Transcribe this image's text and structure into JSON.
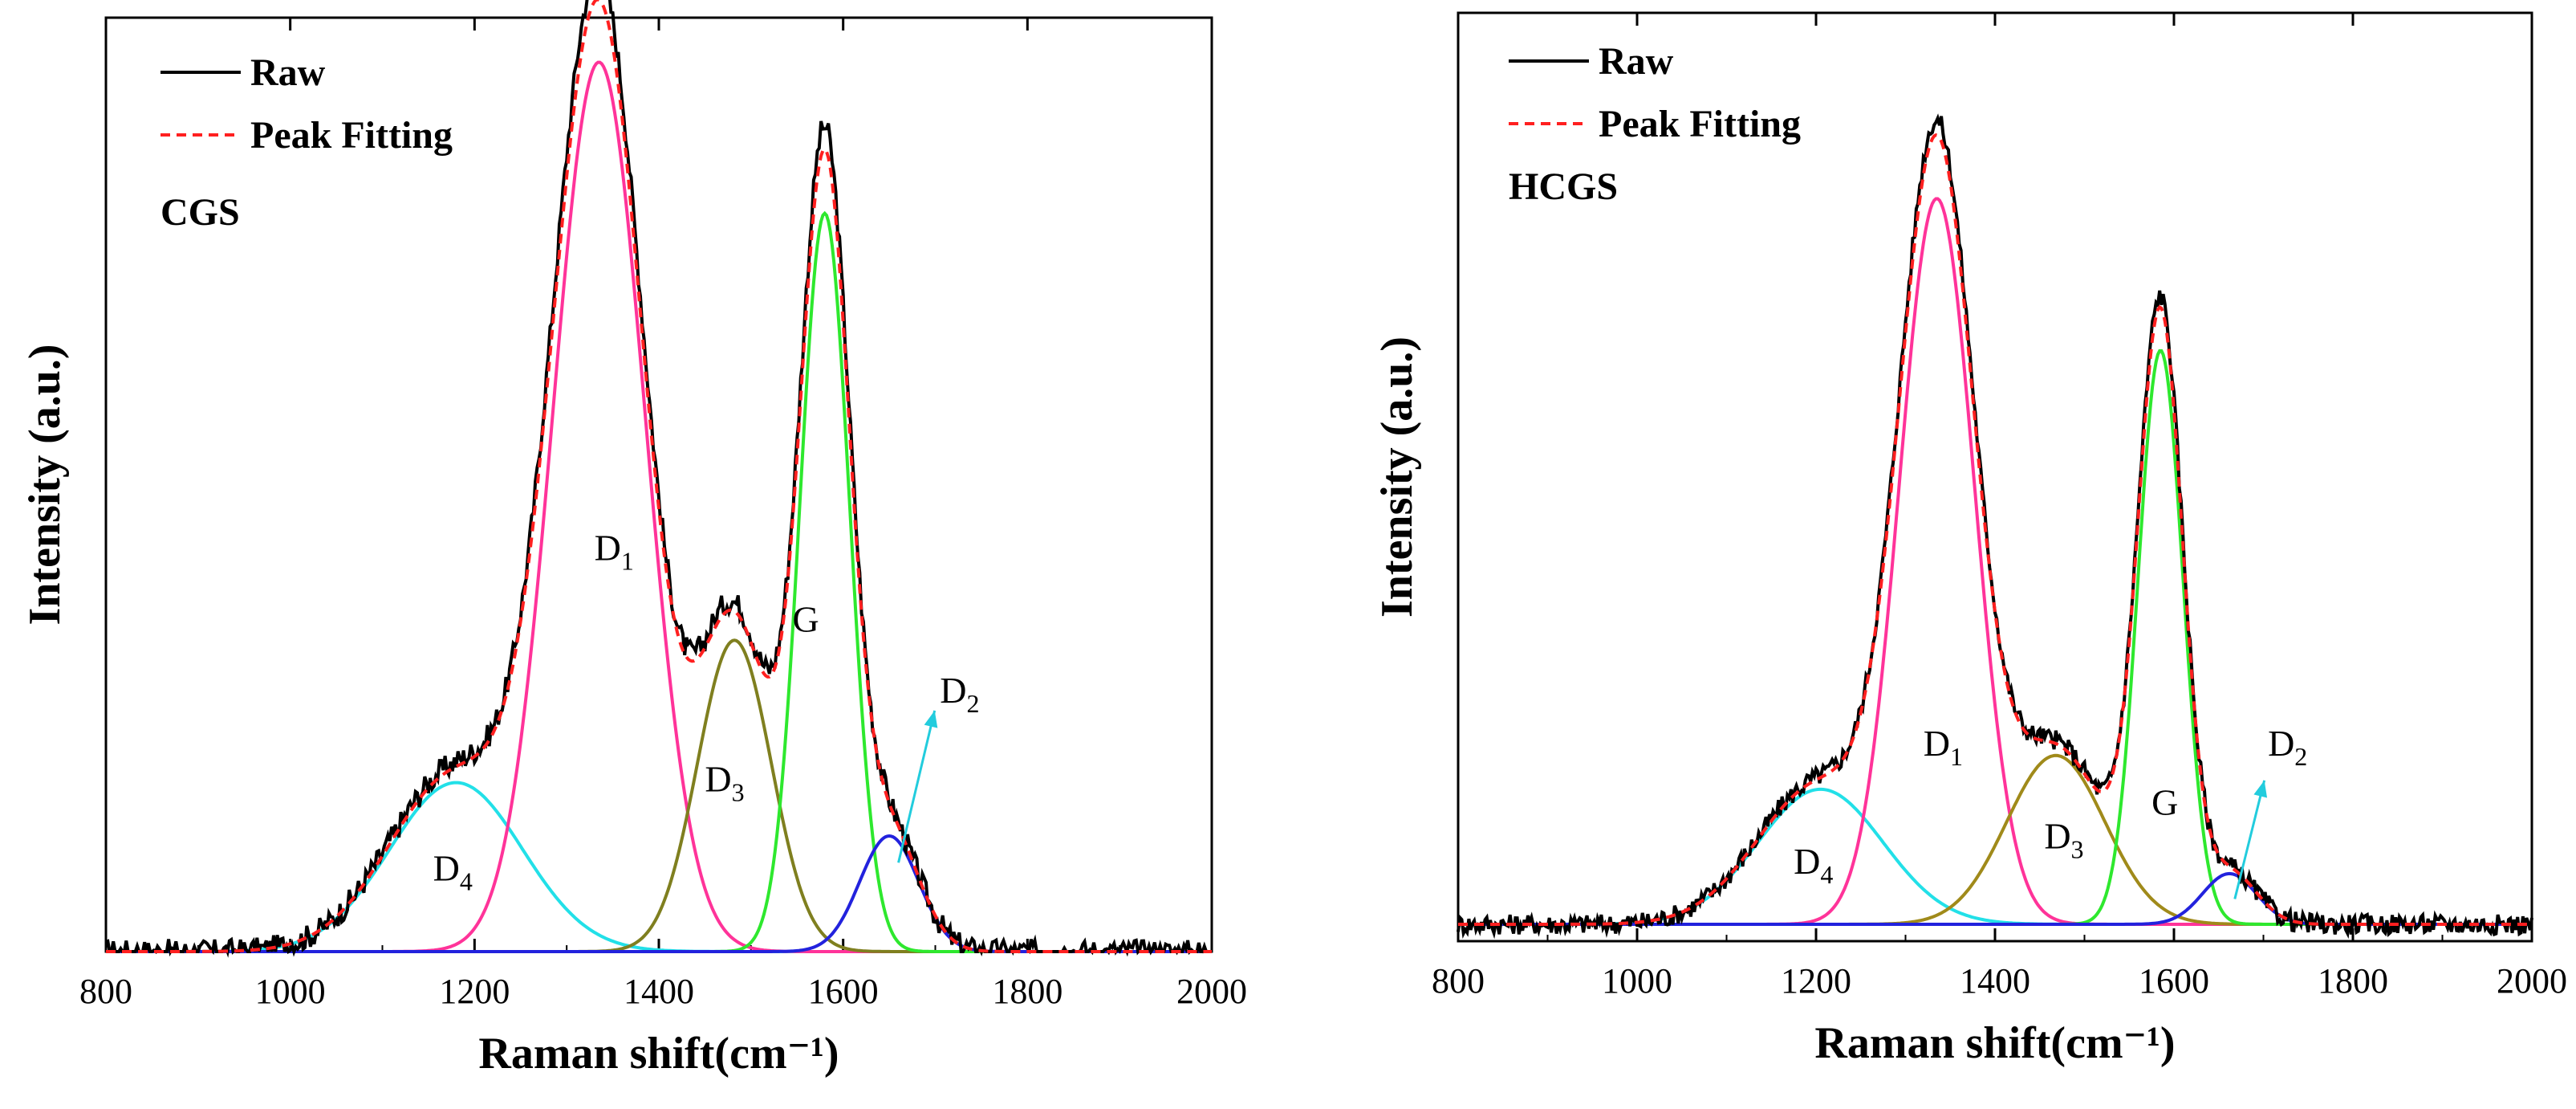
{
  "chart_data": [
    {
      "type": "line",
      "sample": "CGS",
      "xlabel": "Raman shift(cm⁻¹)",
      "ylabel": "Intensity (a.u.)",
      "xlim": [
        800,
        2000
      ],
      "ylim": [
        0,
        105
      ],
      "xticks": [
        "800",
        "1000",
        "1200",
        "1400",
        "1600",
        "1800",
        "2000"
      ],
      "legend": {
        "placement": "top-left",
        "raw": "Raw",
        "fit": "Peak Fitting"
      },
      "components": [
        {
          "name": "D",
          "sub": "4",
          "center": 1180,
          "sigma": 72,
          "height": 19,
          "color": "#22e0e8",
          "label_at": [
            1155,
            8
          ]
        },
        {
          "name": "D",
          "sub": "1",
          "center": 1335,
          "sigma": 50,
          "height": 100,
          "color": "#ff3399",
          "label_at": [
            1330,
            44
          ]
        },
        {
          "name": "D",
          "sub": "3",
          "center": 1482,
          "sigma": 40,
          "height": 35,
          "color": "#7f7f1f",
          "label_at": [
            1450,
            18
          ]
        },
        {
          "name": "G",
          "sub": "",
          "center": 1580,
          "sigma": 27,
          "height": 83,
          "color": "#2ee82e",
          "label_at": [
            1545,
            36
          ]
        },
        {
          "name": "D",
          "sub": "2",
          "center": 1650,
          "sigma": 32,
          "height": 13,
          "color": "#2222dd",
          "label_at": [
            1705,
            28
          ]
        }
      ],
      "baseline": 0,
      "noise": 1.4,
      "fit_scale": 1.05,
      "raw_scale": 1.08,
      "arrow": {
        "from": [
          1660,
          10
        ],
        "to": [
          1708,
          28
        ],
        "color": "#22ccdd"
      }
    },
    {
      "type": "line",
      "sample": "HCGS",
      "xlabel": "Raman shift(cm⁻¹)",
      "ylabel": "Intensity (a.u.)",
      "xlim": [
        800,
        2000
      ],
      "ylim": [
        0,
        110
      ],
      "xticks": [
        "800",
        "1000",
        "1200",
        "1400",
        "1600",
        "1800",
        "2000"
      ],
      "legend": {
        "placement": "top-left",
        "raw": "Raw",
        "fit": "Peak Fitting"
      },
      "components": [
        {
          "name": "D",
          "sub": "4",
          "center": 1205,
          "sigma": 70,
          "height": 16,
          "color": "#22e0e8",
          "label_at": [
            1175,
            8
          ]
        },
        {
          "name": "D",
          "sub": "1",
          "center": 1335,
          "sigma": 42,
          "height": 86,
          "color": "#ff3399",
          "label_at": [
            1320,
            22
          ]
        },
        {
          "name": "D",
          "sub": "3",
          "center": 1468,
          "sigma": 55,
          "height": 20,
          "color": "#a08a1a",
          "label_at": [
            1455,
            11
          ]
        },
        {
          "name": "G",
          "sub": "",
          "center": 1585,
          "sigma": 25,
          "height": 68,
          "color": "#2ee82e",
          "label_at": [
            1575,
            15
          ]
        },
        {
          "name": "D",
          "sub": "2",
          "center": 1662,
          "sigma": 30,
          "height": 6,
          "color": "#2222dd",
          "label_at": [
            1705,
            22
          ]
        }
      ],
      "baseline": 2,
      "noise": 1.2,
      "fit_scale": 1.04,
      "raw_scale": 1.06,
      "arrow": {
        "from": [
          1668,
          5
        ],
        "to": [
          1710,
          20
        ],
        "color": "#22ccdd"
      }
    }
  ]
}
